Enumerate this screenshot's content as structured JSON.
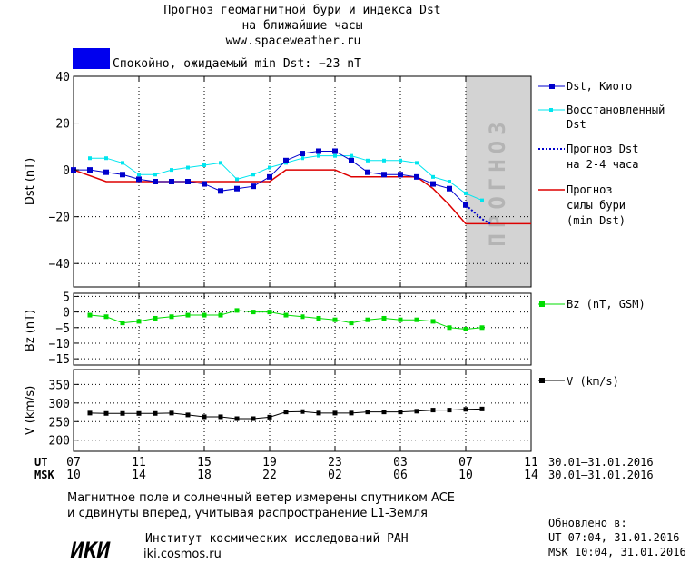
{
  "header": {
    "title_line1": "Прогноз геомагнитной бури и индекса Dst",
    "title_line2": "на ближайшие часы",
    "url": "www.spaceweather.ru",
    "status": "Спокойно, ожидаемый min Dst: −23 nT",
    "status_color": "#0000ee"
  },
  "forecast_label": "ПРОГНОЗ",
  "axes": {
    "dst_ylabel": "Dst (nT)",
    "bz_ylabel": "Bz (nT)",
    "v_ylabel": "V (km/s)",
    "ut_label": "UT",
    "msk_label": "MSK",
    "ut_ticks": [
      "07",
      "11",
      "15",
      "19",
      "23",
      "03",
      "07",
      "11"
    ],
    "msk_ticks": [
      "10",
      "14",
      "18",
      "22",
      "02",
      "06",
      "10",
      "14"
    ],
    "ut_date_range": "30.01–31.01.2016",
    "msk_date_range": "30.01–31.01.2016",
    "dst_ticks": [
      "40",
      "20",
      "0",
      "−20",
      "−40"
    ],
    "bz_ticks": [
      "5",
      "0",
      "−5",
      "−10",
      "−15"
    ],
    "v_ticks": [
      "350",
      "300",
      "250",
      "200"
    ]
  },
  "legend": {
    "dst_kyoto": "Dst, Киото",
    "dst_restored_1": "Восстановленный",
    "dst_restored_2": "Dst",
    "forecast_1": "Прогноз Dst",
    "forecast_2": "на 2-4 часа",
    "storm_1": "Прогноз",
    "storm_2": "силы бури",
    "storm_3": "(min Dst)",
    "bz": "Bz (nT, GSM)",
    "v": "V (km/s)"
  },
  "footer": {
    "note_line1": "Магнитное поле и солнечный ветер измерены спутником ACE",
    "note_line2": "и сдвинуты вперед, учитывая распространение L1-Земля",
    "logo_text": "ИКИ",
    "institute": "Институт космических исследований РАН",
    "institute_url": "iki.cosmos.ru",
    "updated_label": "Обновлено в:",
    "updated_ut": "UT  07:04, 31.01.2016",
    "updated_msk": "MSK 10:04, 31.01.2016"
  },
  "colors": {
    "dst": "#0000cc",
    "restored": "#00e5ee",
    "forecast": "#0000cc",
    "storm": "#dd0000",
    "bz": "#00dd00",
    "v": "#000000",
    "forecast_zone": "#d3d3d3"
  },
  "chart_data": {
    "type": "line",
    "x_unit": "hours UT since 30.01.2016 07:00",
    "xlim": [
      0,
      28
    ],
    "panels": {
      "dst": {
        "ylim": [
          -50,
          40
        ],
        "forecast_zone": [
          24,
          28
        ],
        "series": [
          {
            "name": "Dst, Киото",
            "x": [
              0,
              1,
              2,
              3,
              4,
              5,
              6,
              7,
              8,
              9,
              10,
              11,
              12,
              13,
              14,
              15,
              16,
              17,
              18,
              19,
              20,
              21,
              22,
              23,
              24
            ],
            "values": [
              0,
              0,
              -1,
              -2,
              -4,
              -5,
              -5,
              -5,
              -6,
              -9,
              -8,
              -7,
              -3,
              4,
              7,
              8,
              8,
              4,
              -1,
              -2,
              -2,
              -3,
              -6,
              -8,
              -15
            ]
          },
          {
            "name": "Восстановленный Dst",
            "x": [
              1,
              2,
              3,
              4,
              5,
              6,
              7,
              8,
              9,
              10,
              11,
              12,
              13,
              14,
              15,
              16,
              17,
              18,
              19,
              20,
              21,
              22,
              23,
              24,
              25
            ],
            "values": [
              5,
              5,
              3,
              -2,
              -2,
              0,
              1,
              2,
              3,
              -4,
              -2,
              1,
              3,
              5,
              6,
              6,
              6,
              4,
              4,
              4,
              3,
              -3,
              -5,
              -10,
              -13
            ]
          },
          {
            "name": "Прогноз Dst на 2-4 часа",
            "x": [
              24,
              25,
              25.5
            ],
            "values": [
              -15,
              -21,
              -23
            ]
          },
          {
            "name": "Прогноз силы бури (min Dst)",
            "x": [
              0,
              2,
              12,
              13,
              16,
              17,
              21,
              22,
              23,
              24,
              28
            ],
            "values": [
              0,
              -5,
              -5,
              0,
              0,
              -3,
              -3,
              -8,
              -15,
              -23,
              -23
            ]
          }
        ]
      },
      "bz": {
        "ylim": [
          -17,
          6
        ],
        "series": [
          {
            "name": "Bz (nT, GSM)",
            "x": [
              1,
              2,
              3,
              4,
              5,
              6,
              7,
              8,
              9,
              10,
              11,
              12,
              13,
              14,
              15,
              16,
              17,
              18,
              19,
              20,
              21,
              22,
              23,
              24,
              25
            ],
            "values": [
              -1,
              -1.5,
              -3.5,
              -3,
              -2,
              -1.5,
              -1,
              -1,
              -1,
              0.5,
              0,
              0,
              -1,
              -1.5,
              -2,
              -2.5,
              -3.5,
              -2.5,
              -2,
              -2.5,
              -2.5,
              -3,
              -5,
              -5.5,
              -5
            ]
          }
        ]
      },
      "v": {
        "ylim": [
          170,
          390
        ],
        "series": [
          {
            "name": "V (km/s)",
            "x": [
              1,
              2,
              3,
              4,
              5,
              6,
              7,
              8,
              9,
              10,
              11,
              12,
              13,
              14,
              15,
              16,
              17,
              18,
              19,
              20,
              21,
              22,
              23,
              24,
              25
            ],
            "values": [
              273,
              272,
              272,
              272,
              272,
              273,
              268,
              263,
              263,
              258,
              258,
              262,
              276,
              277,
              273,
              273,
              273,
              276,
              276,
              276,
              278,
              281,
              281,
              283,
              284
            ]
          }
        ]
      }
    }
  }
}
